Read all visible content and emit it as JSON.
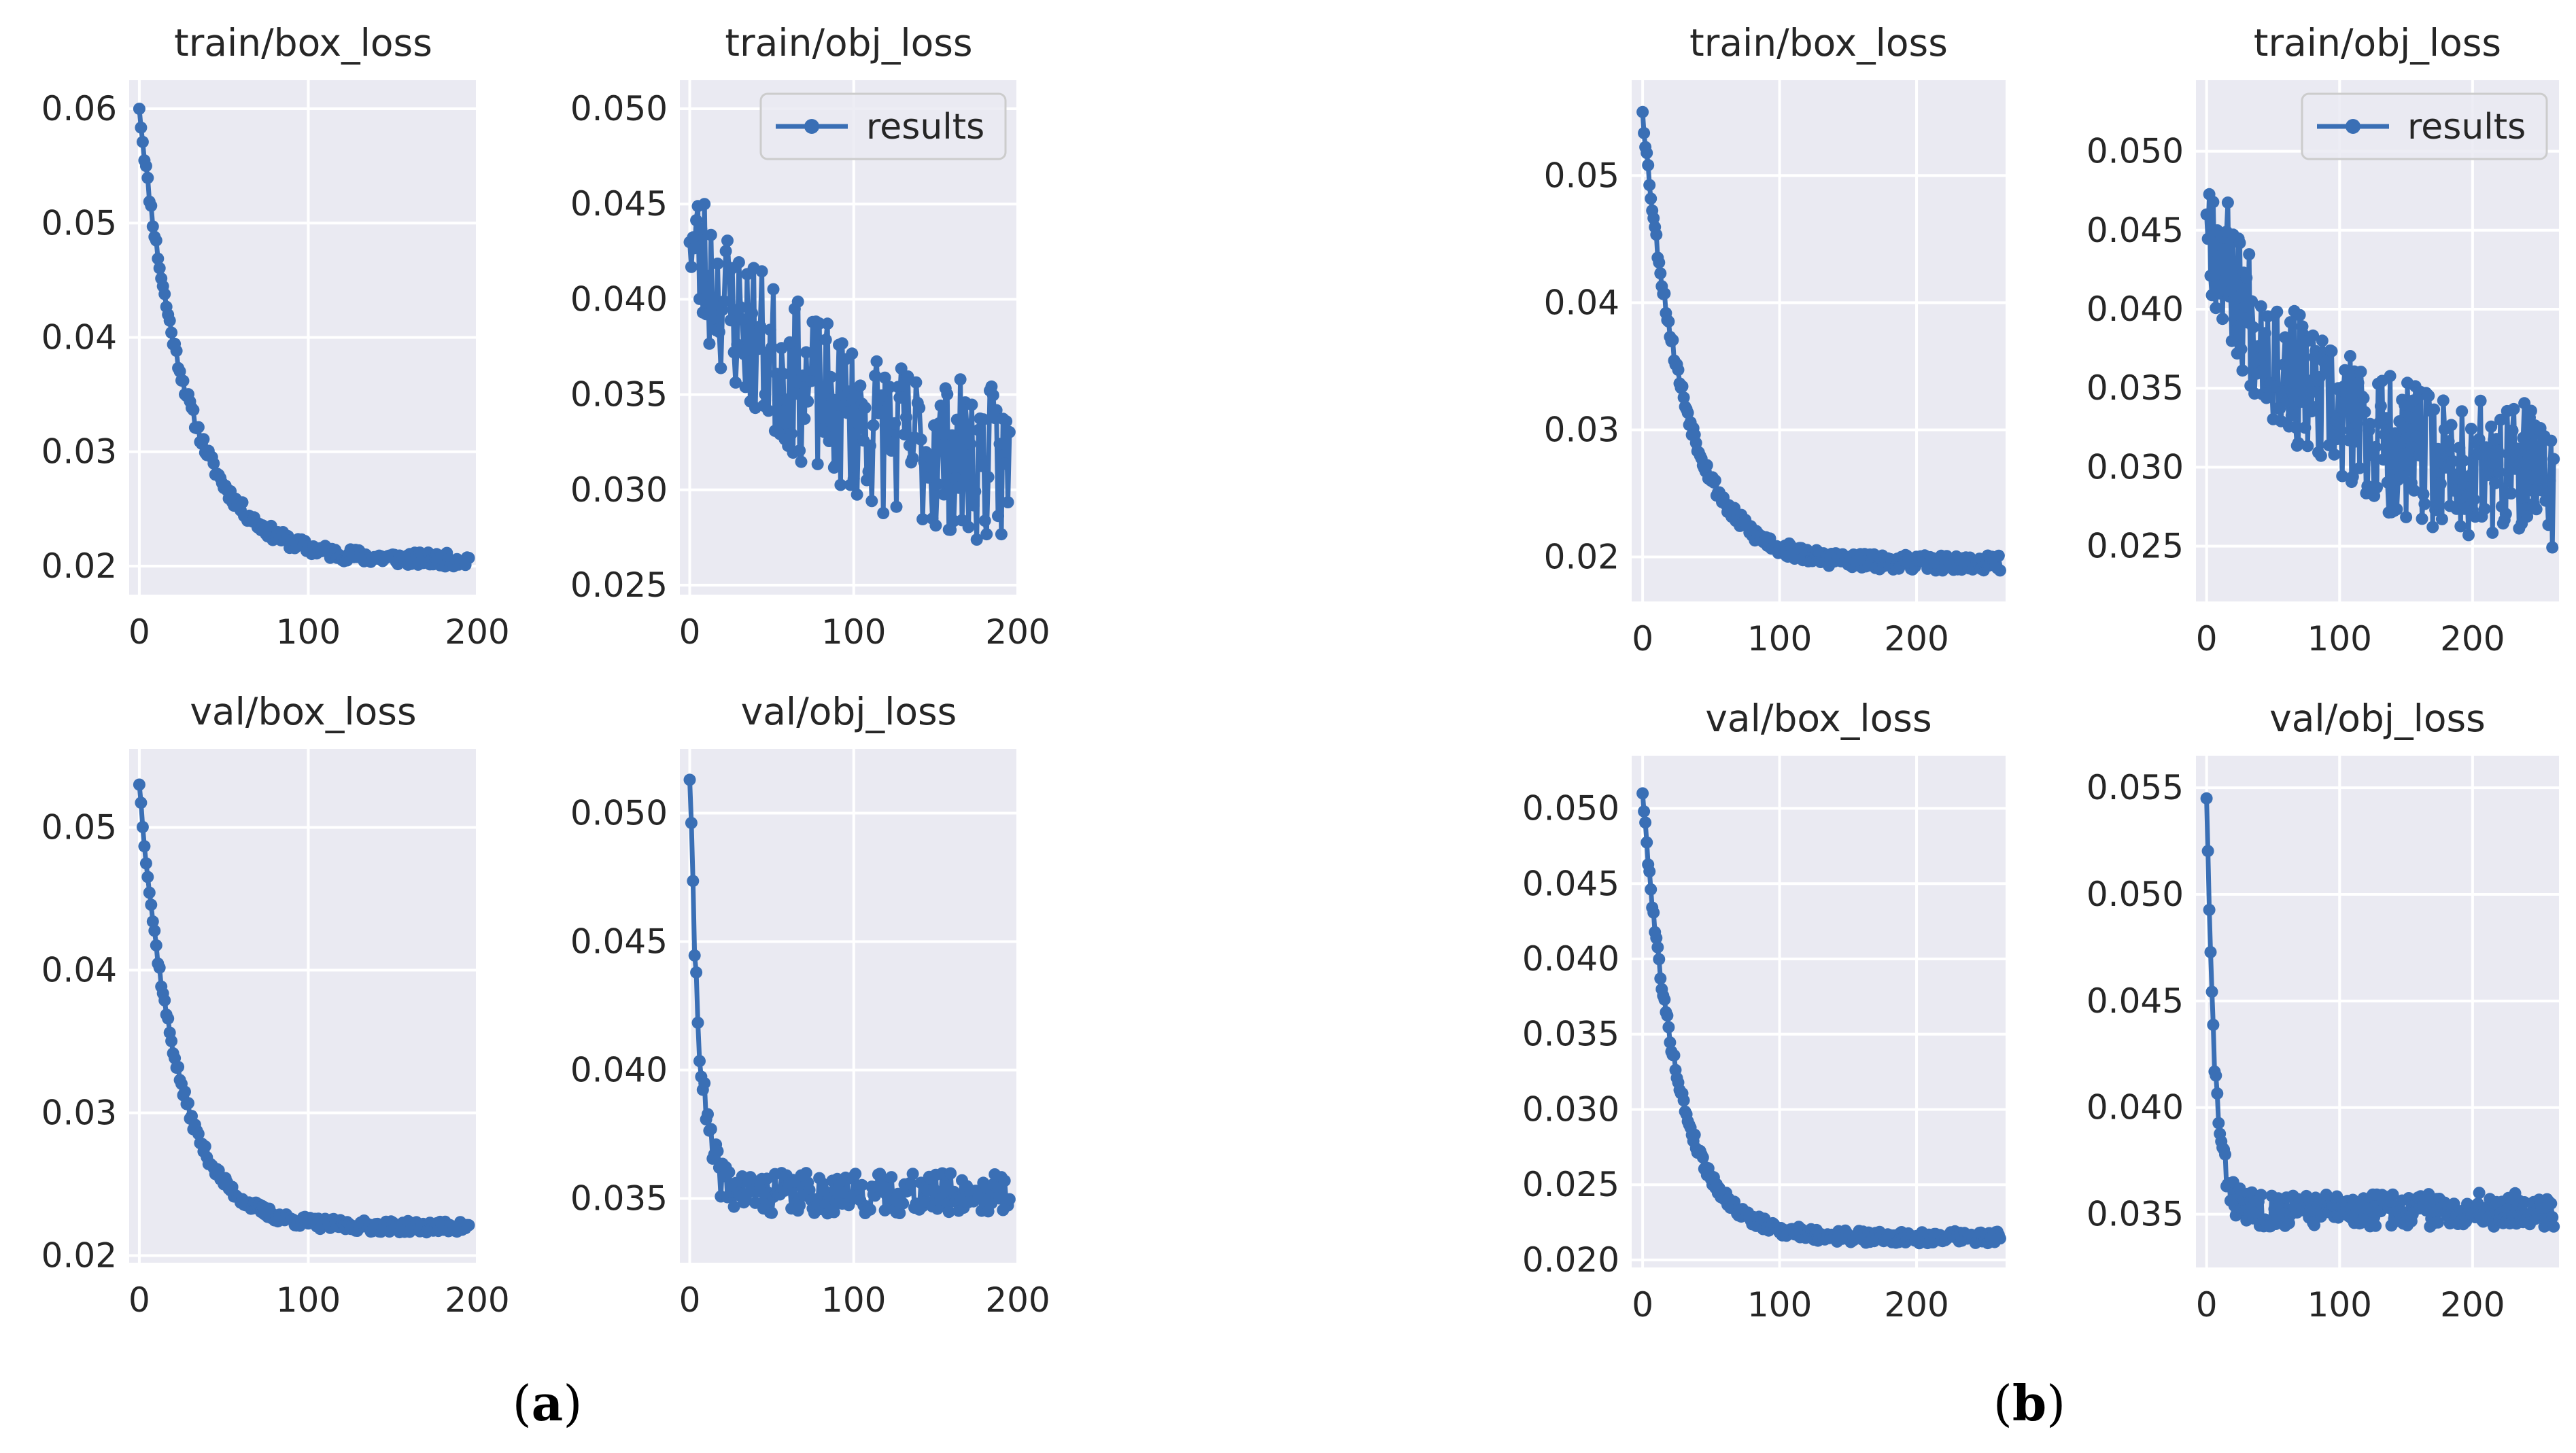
{
  "figure": {
    "panel_labels": [
      {
        "open": "(",
        "letter": "a",
        "close": ")"
      },
      {
        "open": "(",
        "letter": "b",
        "close": ")"
      }
    ],
    "colors": {
      "line": "#3a6fb5",
      "background": "#eaeaf2",
      "grid": "#ffffff"
    },
    "legend_label": "results"
  },
  "chart_data": [
    {
      "type": "line",
      "panel": "a",
      "title": "train/box_loss",
      "xlabel": "",
      "ylabel": "",
      "xlim": [
        -6,
        200
      ],
      "ylim": [
        0.0175,
        0.0625
      ],
      "xticks": [
        "0",
        "100",
        "200"
      ],
      "yticks": [
        "0.02",
        "0.03",
        "0.04",
        "0.05",
        "0.06"
      ],
      "legend": false,
      "series": [
        {
          "name": "results",
          "x": [],
          "y": [],
          "start": 0.06,
          "end": 0.0205,
          "tau": 28,
          "noise": 0.0006,
          "n": 196,
          "seed": 11
        }
      ]
    },
    {
      "type": "line",
      "panel": "a",
      "title": "train/obj_loss",
      "xlabel": "",
      "ylabel": "",
      "xlim": [
        -6,
        200
      ],
      "ylim": [
        0.0245,
        0.0515
      ],
      "xticks": [
        "0",
        "100",
        "200"
      ],
      "yticks": [
        "0.025",
        "0.030",
        "0.035",
        "0.040",
        "0.045",
        "0.050"
      ],
      "legend": true,
      "series": [
        {
          "name": "results",
          "x": [],
          "y": [],
          "start": 0.043,
          "end": 0.03,
          "tau": 80,
          "noise": 0.0042,
          "n": 196,
          "seed": 23
        }
      ]
    },
    {
      "type": "line",
      "panel": "a",
      "title": "val/box_loss",
      "xlabel": "",
      "ylabel": "",
      "xlim": [
        -6,
        200
      ],
      "ylim": [
        0.0195,
        0.0555
      ],
      "xticks": [
        "0",
        "100",
        "200"
      ],
      "yticks": [
        "0.02",
        "0.03",
        "0.04",
        "0.05"
      ],
      "legend": false,
      "series": [
        {
          "name": "results",
          "x": [],
          "y": [],
          "start": 0.053,
          "end": 0.022,
          "tau": 22,
          "noise": 0.0004,
          "n": 196,
          "seed": 37
        }
      ]
    },
    {
      "type": "line",
      "panel": "a",
      "title": "val/obj_loss",
      "xlabel": "",
      "ylabel": "",
      "xlim": [
        -6,
        200
      ],
      "ylim": [
        0.0325,
        0.0525
      ],
      "xticks": [
        "0",
        "100",
        "200"
      ],
      "yticks": [
        "0.035",
        "0.040",
        "0.045",
        "0.050"
      ],
      "legend": false,
      "series": [
        {
          "name": "results",
          "x": [],
          "y": [],
          "start": 0.0513,
          "end": 0.0352,
          "tau": 6,
          "noise": 0.0008,
          "n": 196,
          "seed": 41
        }
      ]
    },
    {
      "type": "line",
      "panel": "b",
      "title": "train/box_loss",
      "xlabel": "",
      "ylabel": "",
      "xlim": [
        -8,
        265
      ],
      "ylim": [
        0.0165,
        0.0575
      ],
      "xticks": [
        "0",
        "100",
        "200"
      ],
      "yticks": [
        "0.02",
        "0.03",
        "0.04",
        "0.05"
      ],
      "legend": false,
      "series": [
        {
          "name": "results",
          "x": [],
          "y": [],
          "start": 0.055,
          "end": 0.0195,
          "tau": 30,
          "noise": 0.0006,
          "n": 262,
          "seed": 53
        }
      ]
    },
    {
      "type": "line",
      "panel": "b",
      "title": "train/obj_loss",
      "xlabel": "",
      "ylabel": "",
      "xlim": [
        -8,
        265
      ],
      "ylim": [
        0.0215,
        0.0545
      ],
      "xticks": [
        "0",
        "100",
        "200"
      ],
      "yticks": [
        "0.025",
        "0.030",
        "0.035",
        "0.040",
        "0.045",
        "0.050"
      ],
      "legend": true,
      "series": [
        {
          "name": "results",
          "x": [],
          "y": [],
          "start": 0.046,
          "end": 0.029,
          "tau": 70,
          "noise": 0.0045,
          "n": 262,
          "seed": 67
        }
      ]
    },
    {
      "type": "line",
      "panel": "b",
      "title": "val/box_loss",
      "xlabel": "",
      "ylabel": "",
      "xlim": [
        -8,
        265
      ],
      "ylim": [
        0.0195,
        0.0535
      ],
      "xticks": [
        "0",
        "100",
        "200"
      ],
      "yticks": [
        "0.020",
        "0.025",
        "0.030",
        "0.035",
        "0.040",
        "0.045",
        "0.050"
      ],
      "legend": false,
      "series": [
        {
          "name": "results",
          "x": [],
          "y": [],
          "start": 0.051,
          "end": 0.0215,
          "tau": 25,
          "noise": 0.0004,
          "n": 262,
          "seed": 79
        }
      ]
    },
    {
      "type": "line",
      "panel": "b",
      "title": "val/obj_loss",
      "xlabel": "",
      "ylabel": "",
      "xlim": [
        -8,
        265
      ],
      "ylim": [
        0.0325,
        0.0565
      ],
      "xticks": [
        "0",
        "100",
        "200"
      ],
      "yticks": [
        "0.035",
        "0.040",
        "0.045",
        "0.050",
        "0.055"
      ],
      "legend": false,
      "series": [
        {
          "name": "results",
          "x": [],
          "y": [],
          "start": 0.0545,
          "end": 0.0352,
          "tau": 6,
          "noise": 0.0008,
          "n": 262,
          "seed": 83
        }
      ]
    }
  ]
}
